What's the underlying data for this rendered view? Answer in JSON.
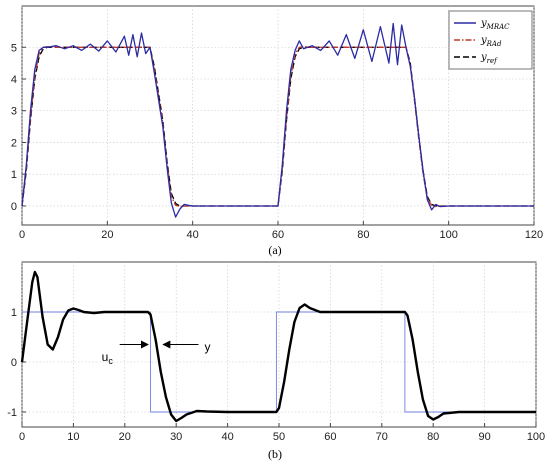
{
  "chart_data": [
    {
      "type": "line",
      "caption": "(a)",
      "xlim": [
        0,
        120
      ],
      "ylim": [
        -0.6,
        6.3
      ],
      "xticks": [
        0,
        20,
        40,
        60,
        80,
        100,
        120
      ],
      "yticks": [
        0,
        1,
        2,
        3,
        4,
        5
      ],
      "grid": true,
      "legend": {
        "placement": "top-right",
        "entries": [
          {
            "main": "y",
            "sub": "MRAC",
            "color": "#2b2ba6",
            "dash": "solid"
          },
          {
            "main": "y",
            "sub": "RAd",
            "color": "#c0392b",
            "dash": "dashdot"
          },
          {
            "main": "y",
            "sub": "ref",
            "color": "#000000",
            "dash": "dashed"
          }
        ]
      },
      "series": [
        {
          "name": "yMRAC",
          "color": "#2b2ba6",
          "x": [
            0,
            1,
            2,
            3,
            4,
            5,
            6,
            8,
            10,
            12,
            14,
            16,
            18,
            20,
            22,
            24,
            25,
            26,
            27,
            28,
            29,
            30,
            31,
            33,
            34,
            35,
            36,
            37,
            38,
            39,
            40,
            45,
            50,
            55,
            59,
            60,
            61,
            62,
            63,
            64,
            65,
            66,
            68,
            70,
            72,
            74,
            76,
            78,
            80,
            82,
            84,
            86,
            87,
            88,
            89,
            90,
            91,
            92,
            93,
            94,
            95,
            96,
            97,
            98,
            100,
            105,
            110,
            115,
            120
          ],
          "y": [
            0,
            1.3,
            3.0,
            4.3,
            4.9,
            5.0,
            5.0,
            5.05,
            4.95,
            5.05,
            4.9,
            5.1,
            4.88,
            5.2,
            4.85,
            5.35,
            4.75,
            5.4,
            4.7,
            5.45,
            4.8,
            5.0,
            4.2,
            2.5,
            1.2,
            0.1,
            -0.35,
            -0.1,
            0.05,
            0.02,
            0.0,
            0.0,
            0.0,
            0.0,
            0.0,
            0.0,
            1.3,
            3.0,
            4.3,
            4.9,
            5.2,
            4.95,
            5.05,
            4.9,
            5.2,
            4.75,
            5.4,
            4.65,
            5.55,
            4.55,
            5.65,
            4.5,
            5.75,
            4.45,
            5.7,
            5.0,
            4.4,
            3.4,
            2.2,
            1.1,
            0.2,
            -0.12,
            0.05,
            -0.02,
            0.0,
            0.0,
            0.0,
            0.0,
            0.0
          ]
        },
        {
          "name": "yRAd",
          "color": "#c0392b",
          "x": [
            0,
            1,
            2,
            3,
            4,
            5,
            6,
            8,
            30,
            31,
            33,
            34,
            35,
            36,
            37,
            38,
            40,
            60,
            61,
            62,
            63,
            64,
            65,
            66,
            68,
            90,
            91,
            92,
            93,
            94,
            95,
            96,
            97,
            98,
            100,
            120
          ],
          "y": [
            0,
            1.2,
            2.8,
            4.1,
            4.8,
            5.0,
            5.02,
            5.0,
            5.0,
            4.3,
            2.6,
            1.3,
            0.3,
            0.02,
            -0.02,
            0.0,
            0.0,
            0.0,
            1.2,
            2.8,
            4.1,
            4.8,
            5.0,
            5.02,
            5.0,
            5.0,
            4.4,
            3.3,
            2.1,
            1.0,
            0.25,
            0.02,
            -0.02,
            0.0,
            0.0,
            0.0
          ]
        },
        {
          "name": "yref",
          "color": "#000000",
          "x": [
            0,
            1,
            2,
            3,
            4,
            5,
            6,
            8,
            30,
            31,
            33,
            34,
            35,
            36,
            37,
            38,
            40,
            60,
            61,
            62,
            63,
            64,
            65,
            66,
            68,
            90,
            91,
            92,
            93,
            94,
            95,
            96,
            97,
            98,
            100,
            120
          ],
          "y": [
            0,
            1.1,
            2.7,
            4.0,
            4.7,
            4.95,
            5.0,
            5.0,
            5.0,
            4.4,
            2.7,
            1.4,
            0.4,
            0.08,
            0.0,
            0.0,
            0.0,
            0.0,
            1.1,
            2.7,
            4.0,
            4.7,
            4.95,
            5.0,
            5.0,
            5.0,
            4.5,
            3.4,
            2.2,
            1.1,
            0.3,
            0.05,
            0.0,
            0.0,
            0.0,
            0.0
          ]
        }
      ]
    },
    {
      "type": "line",
      "caption": "(b)",
      "xlim": [
        0,
        100
      ],
      "ylim": [
        -1.3,
        2.0
      ],
      "xticks": [
        0,
        10,
        20,
        30,
        40,
        50,
        60,
        70,
        80,
        90,
        100
      ],
      "yticks": [
        -1,
        0,
        1
      ],
      "grid": true,
      "annotations": [
        {
          "text": "u",
          "sub": "c",
          "x": 15.5,
          "y": 0.3,
          "arrow_to": [
            24.5,
            0.35
          ]
        },
        {
          "text": "y",
          "x": 35.5,
          "y": 0.3,
          "arrow_to": [
            27.5,
            0.35
          ]
        }
      ],
      "series": [
        {
          "name": "uc",
          "color": "#6f7fe0",
          "x": [
            0,
            25,
            25,
            49.5,
            49.5,
            74.5,
            74.5,
            100
          ],
          "y": [
            1,
            1,
            -1,
            -1,
            1,
            1,
            -1,
            -1
          ]
        },
        {
          "name": "y",
          "color": "#000000",
          "x": [
            0,
            1,
            2,
            2.5,
            3,
            4,
            5,
            6,
            7,
            8,
            9,
            10,
            11,
            12,
            14,
            16,
            20,
            24.5,
            25,
            26,
            27,
            28,
            29,
            30,
            31,
            32,
            34,
            36,
            40,
            45,
            49.5,
            50,
            51,
            52,
            53,
            54,
            55,
            56,
            58,
            60,
            65,
            74.5,
            75,
            76,
            77,
            78,
            79,
            80,
            81,
            82,
            85,
            90,
            100
          ],
          "y": [
            0,
            0.8,
            1.6,
            1.8,
            1.7,
            0.9,
            0.35,
            0.25,
            0.5,
            0.85,
            1.03,
            1.07,
            1.04,
            1.0,
            0.98,
            1.0,
            1.0,
            1.0,
            0.95,
            0.45,
            -0.2,
            -0.7,
            -1.05,
            -1.18,
            -1.12,
            -1.05,
            -0.98,
            -0.99,
            -1.0,
            -1.0,
            -1.0,
            -0.92,
            -0.4,
            0.25,
            0.8,
            1.08,
            1.15,
            1.08,
            1.0,
            1.0,
            1.0,
            1.0,
            0.93,
            0.45,
            -0.2,
            -0.75,
            -1.08,
            -1.15,
            -1.1,
            -1.03,
            -1.0,
            -1.0,
            -1.0
          ]
        }
      ]
    }
  ]
}
